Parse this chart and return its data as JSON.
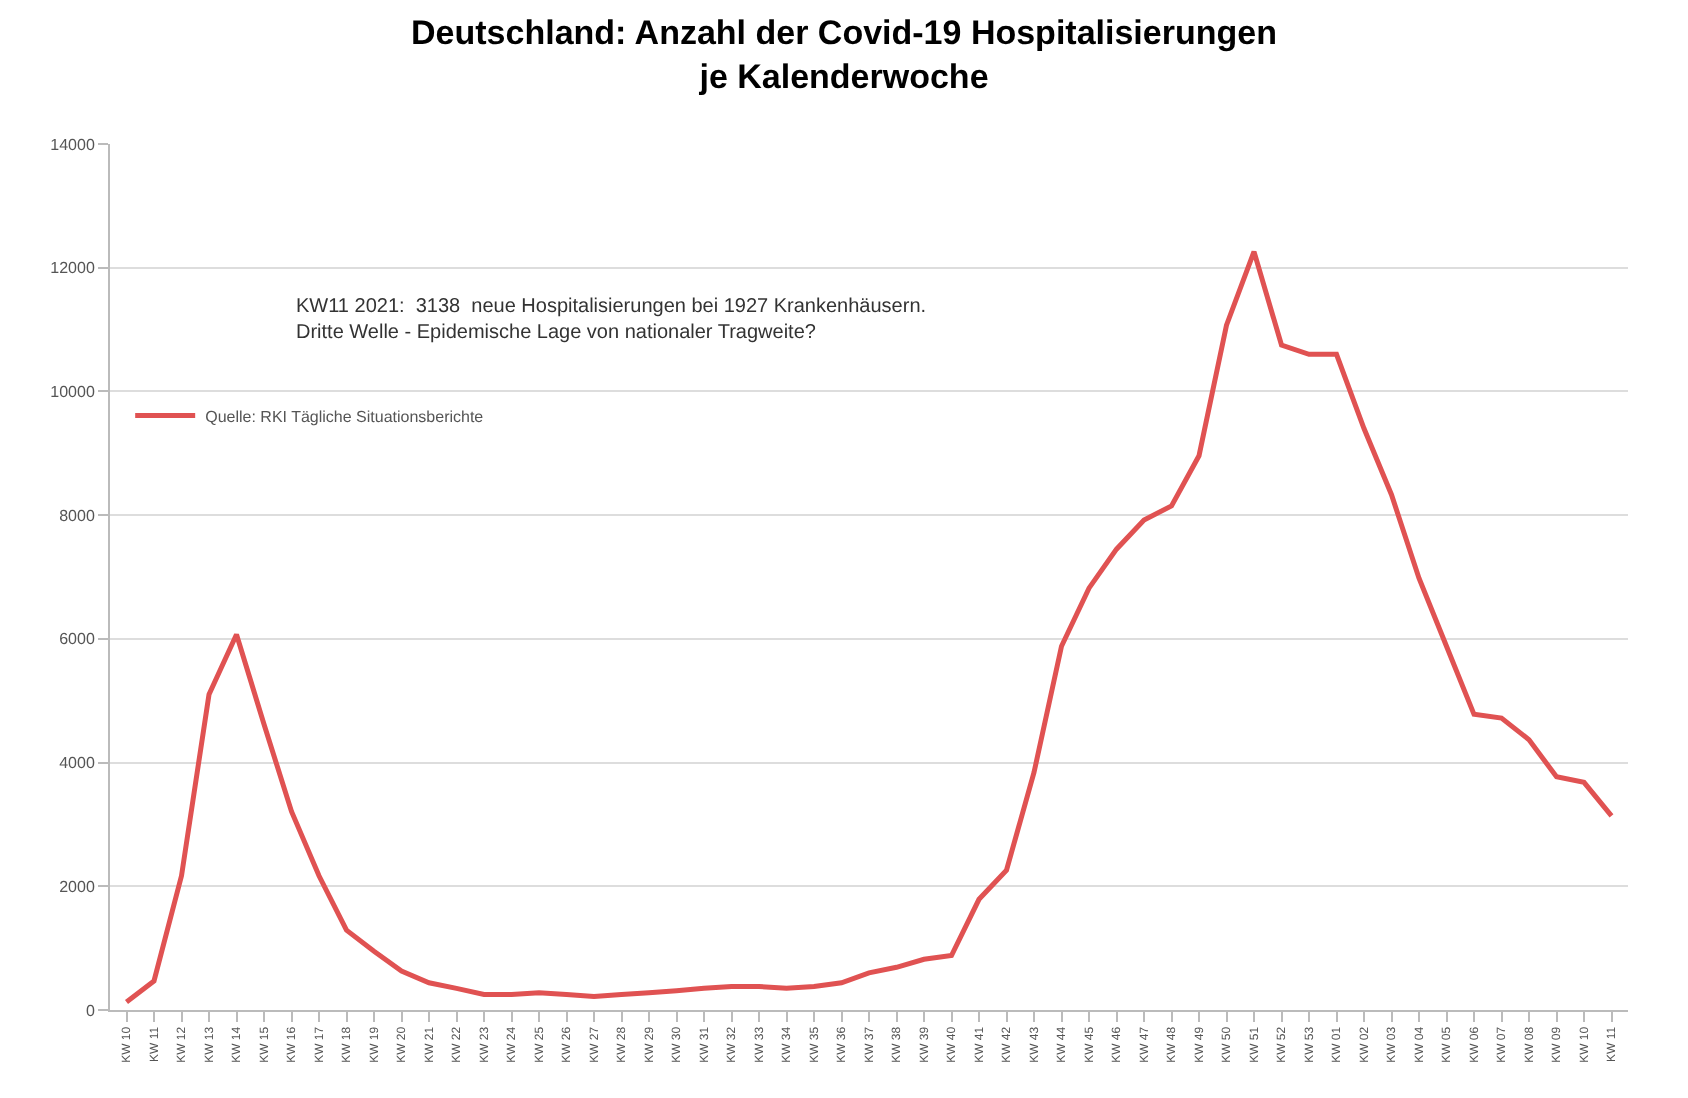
{
  "chart_data": {
    "type": "line",
    "title": "Deutschland: Anzahl der Covid-19 Hospitalisierungen\nje Kalenderwoche",
    "categories": [
      "KW 10",
      "KW 11",
      "KW 12",
      "KW 13",
      "KW 14",
      "KW 15",
      "KW 16",
      "KW 17",
      "KW 18",
      "KW 19",
      "KW 20",
      "KW 21",
      "KW 22",
      "KW 23",
      "KW 24",
      "KW 25",
      "KW 26",
      "KW 27",
      "KW 28",
      "KW 29",
      "KW 30",
      "KW 31",
      "KW 32",
      "KW 33",
      "KW 34",
      "KW 35",
      "KW 36",
      "KW 37",
      "KW 38",
      "KW 39",
      "KW 40",
      "KW 41",
      "KW 42",
      "KW 43",
      "KW 44",
      "KW 45",
      "KW 46",
      "KW 47",
      "KW 48",
      "KW 49",
      "KW 50",
      "KW 51",
      "KW 52",
      "KW 53",
      "KW 01",
      "KW 02",
      "KW 03",
      "KW 04",
      "KW 05",
      "KW 06",
      "KW 07",
      "KW 08",
      "KW 09",
      "KW 10",
      "KW 11"
    ],
    "series": [
      {
        "name": "Quelle: RKI Tägliche Situationsberichte",
        "color": "#e05252",
        "values": [
          130,
          470,
          2170,
          5100,
          6070,
          4620,
          3210,
          2170,
          1290,
          950,
          630,
          440,
          350,
          250,
          250,
          280,
          250,
          220,
          250,
          280,
          310,
          350,
          380,
          380,
          350,
          380,
          440,
          600,
          690,
          820,
          880,
          1790,
          2260,
          3840,
          5880,
          6820,
          7450,
          7920,
          8150,
          8960,
          11070,
          12260,
          10750,
          10600,
          10600,
          9400,
          8330,
          6980,
          5880,
          4780,
          4720,
          4370,
          3770,
          3680,
          3138
        ]
      }
    ],
    "ylim": [
      0,
      14000
    ],
    "yticks": [
      0,
      2000,
      4000,
      6000,
      8000,
      10000,
      12000,
      14000
    ],
    "grid": "y",
    "legend": "top left",
    "marker": "none",
    "line_style": "solid",
    "annotations": [
      "KW11 2021:  3138  neue Hospitalisierungen bei 1927 Krankenhäusern.\nDritte Welle - Epidemische Lage von nationaler Tragweite?"
    ]
  }
}
